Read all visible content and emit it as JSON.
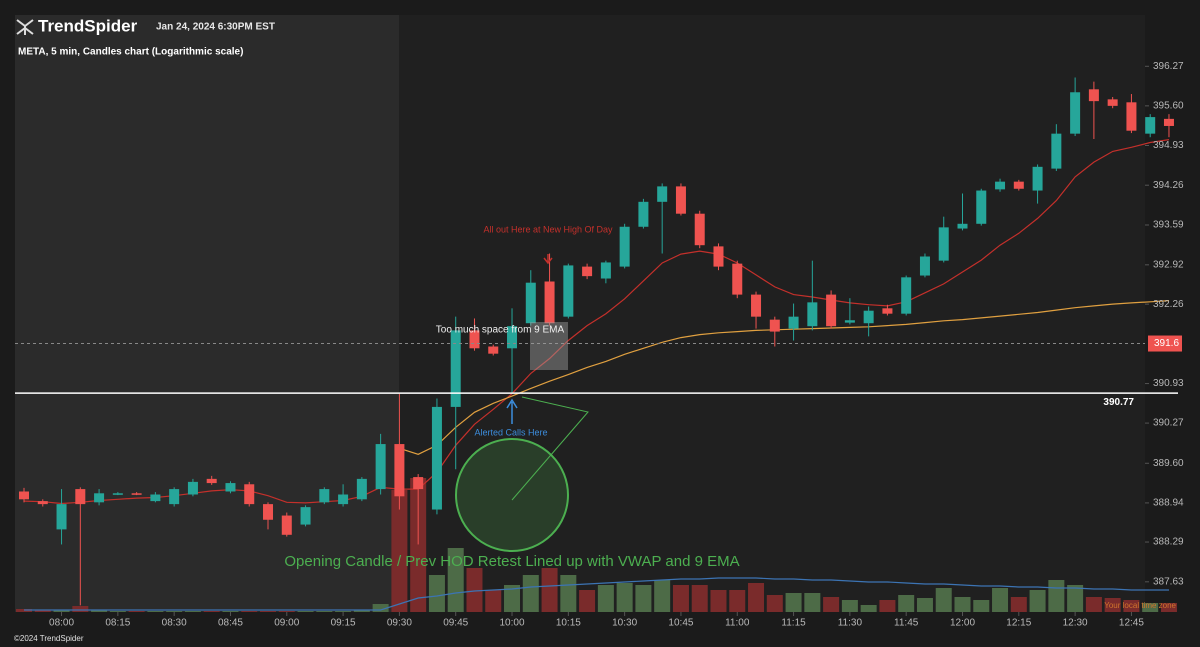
{
  "header": {
    "brand": "TrendSpider",
    "date": "Jan 24, 2024 6:30PM EST"
  },
  "footer": "©2024 TrendSpider",
  "chart_data": {
    "type": "candlestick",
    "title": "META, 5 min, Candles chart (Logarithmic scale)",
    "log_scale": true,
    "timezone_note": "Your local time zone",
    "up_color": "#26a69a",
    "down_color": "#ef5350",
    "categories": [
      null,
      null,
      "08:00",
      null,
      null,
      "08:15",
      null,
      null,
      "08:30",
      null,
      null,
      "08:45",
      null,
      null,
      "09:00",
      null,
      null,
      "09:15",
      null,
      null,
      "09:30",
      null,
      null,
      "09:45",
      null,
      null,
      "10:00",
      null,
      null,
      "10:15",
      null,
      null,
      "10:30",
      null,
      null,
      "10:45",
      null,
      null,
      "11:00",
      null,
      null,
      "11:15",
      null,
      null,
      "11:30",
      null,
      null,
      "11:45",
      null,
      null,
      "12:00",
      null,
      null,
      "12:15",
      null,
      null,
      "12:30",
      null,
      null,
      "12:45",
      null,
      null
    ],
    "ohlc": {
      "open": [
        389.13,
        388.97,
        388.5,
        389.17,
        388.95,
        389.08,
        389.1,
        388.97,
        388.92,
        389.08,
        389.34,
        389.13,
        389.25,
        388.92,
        388.73,
        388.58,
        388.95,
        388.92,
        389.0,
        389.17,
        389.92,
        389.37,
        388.83,
        390.54,
        391.82,
        391.55,
        391.52,
        391.94,
        392.64,
        392.05,
        392.89,
        392.69,
        392.89,
        393.56,
        393.98,
        394.24,
        393.78,
        393.23,
        392.94,
        392.42,
        392.0,
        391.85,
        391.89,
        392.42,
        391.95,
        391.94,
        392.19,
        392.1,
        392.74,
        392.99,
        393.53,
        393.61,
        394.19,
        394.32,
        394.17,
        394.54,
        395.13,
        395.88,
        395.71,
        395.66,
        395.13,
        395.38
      ],
      "high": [
        389.19,
        389.0,
        389.17,
        389.2,
        389.17,
        389.12,
        389.12,
        389.12,
        389.2,
        389.34,
        389.39,
        389.3,
        389.29,
        388.95,
        388.78,
        388.9,
        389.2,
        389.25,
        389.37,
        390.09,
        390.76,
        389.42,
        390.68,
        392.05,
        392.02,
        391.58,
        392.19,
        392.83,
        393.11,
        392.94,
        392.94,
        392.99,
        393.61,
        394.03,
        394.29,
        394.29,
        393.83,
        393.28,
        392.99,
        392.47,
        392.05,
        392.27,
        392.99,
        392.49,
        392.36,
        392.22,
        392.25,
        392.74,
        393.11,
        393.73,
        394.12,
        394.2,
        394.37,
        394.35,
        394.61,
        395.29,
        396.08,
        396.01,
        395.75,
        395.8,
        395.46,
        395.46
      ],
      "low": [
        388.95,
        388.88,
        388.25,
        387.24,
        388.9,
        389.07,
        389.07,
        388.95,
        388.88,
        389.05,
        389.24,
        389.1,
        388.88,
        388.5,
        388.38,
        388.55,
        388.92,
        388.88,
        388.97,
        389.08,
        388.83,
        388.25,
        388.75,
        389.5,
        391.48,
        391.4,
        390.76,
        391.9,
        391.9,
        392.02,
        392.68,
        392.61,
        392.86,
        393.53,
        393.11,
        393.75,
        393.2,
        392.83,
        392.36,
        391.85,
        391.55,
        391.65,
        391.82,
        391.85,
        391.92,
        391.72,
        392.07,
        392.07,
        392.71,
        392.96,
        393.5,
        393.58,
        394.15,
        394.17,
        393.95,
        394.5,
        395.09,
        395.04,
        395.56,
        395.14,
        395.07,
        395.07
      ],
      "close": [
        389.0,
        388.92,
        388.92,
        388.92,
        389.1,
        389.1,
        389.08,
        389.08,
        389.17,
        389.29,
        389.27,
        389.27,
        388.92,
        388.66,
        388.41,
        388.87,
        389.17,
        389.08,
        389.34,
        389.92,
        389.05,
        389.17,
        390.54,
        391.82,
        391.52,
        391.43,
        391.89,
        392.62,
        391.94,
        392.91,
        392.73,
        392.96,
        393.56,
        393.98,
        394.24,
        393.78,
        393.25,
        392.89,
        392.42,
        392.05,
        391.8,
        392.05,
        392.29,
        391.89,
        391.99,
        392.15,
        392.1,
        392.71,
        393.06,
        393.55,
        393.61,
        394.17,
        394.32,
        394.2,
        394.57,
        395.13,
        395.83,
        395.68,
        395.6,
        395.18,
        395.41,
        395.26
      ]
    },
    "lines": [
      {
        "color": "#c4302b",
        "values": [
          388.97,
          388.96,
          388.93,
          388.95,
          388.98,
          389.0,
          389.02,
          389.03,
          389.06,
          389.1,
          389.14,
          389.16,
          389.14,
          389.06,
          388.95,
          388.94,
          388.96,
          388.98,
          389.05,
          389.2,
          389.17,
          389.17,
          389.45,
          389.9,
          390.25,
          390.5,
          390.76,
          391.1,
          391.35,
          391.65,
          391.9,
          392.1,
          392.35,
          392.65,
          392.95,
          393.1,
          393.15,
          393.1,
          392.95,
          392.75,
          392.55,
          392.42,
          392.38,
          392.33,
          392.28,
          392.25,
          392.23,
          392.3,
          392.45,
          392.6,
          392.8,
          393.0,
          393.25,
          393.45,
          393.7,
          394.0,
          394.4,
          394.65,
          394.83,
          394.9,
          394.98,
          395.03
        ]
      },
      {
        "color": "#e0a040",
        "values": [
          null,
          null,
          null,
          null,
          null,
          null,
          null,
          null,
          null,
          null,
          null,
          null,
          null,
          null,
          null,
          null,
          null,
          null,
          null,
          null,
          389.85,
          389.75,
          389.9,
          390.2,
          390.45,
          390.6,
          390.72,
          390.85,
          390.97,
          391.08,
          391.2,
          391.3,
          391.42,
          391.52,
          391.62,
          391.7,
          391.75,
          391.78,
          391.8,
          391.82,
          391.83,
          391.84,
          391.85,
          391.86,
          391.87,
          391.88,
          391.9,
          391.92,
          391.95,
          391.98,
          392.0,
          392.03,
          392.06,
          392.09,
          392.12,
          392.16,
          392.2,
          392.23,
          392.26,
          392.28,
          392.3,
          392.32
        ]
      }
    ],
    "volume": {
      "vlim": [
        0,
        140
      ],
      "up_color": "#4d6b47",
      "down_color": "#7a2b2b",
      "ma_color": "#3c74b4",
      "values": [
        3,
        2,
        2,
        6,
        2,
        1,
        1,
        1,
        1,
        1,
        1,
        1,
        1,
        1,
        1,
        1,
        1,
        1,
        2,
        8,
        122,
        134,
        37,
        64,
        44,
        22,
        27,
        37,
        44,
        37,
        22,
        27,
        29,
        27,
        32,
        27,
        27,
        22,
        22,
        29,
        17,
        19,
        19,
        15,
        12,
        7,
        12,
        17,
        14,
        24,
        15,
        12,
        24,
        15,
        22,
        32,
        27,
        15,
        14,
        12,
        9,
        9
      ],
      "ma": [
        2,
        2,
        2,
        2,
        2,
        2,
        2,
        2,
        2,
        2,
        2,
        2,
        2,
        2,
        2,
        2,
        2,
        2,
        2,
        2,
        8,
        14,
        16,
        19,
        21,
        22,
        23,
        25,
        26,
        27,
        28,
        29,
        30,
        31,
        32,
        33,
        33,
        34,
        34,
        34,
        33,
        33,
        32,
        32,
        31,
        30,
        30,
        29,
        28,
        28,
        27,
        26,
        26,
        25,
        25,
        24,
        24,
        23,
        23,
        22,
        22,
        22
      ]
    },
    "ylim": [
      387.13,
      397.14
    ],
    "yticks": [
      396.27,
      {
        "value": 395.6,
        "label": "395.60"
      },
      394.93,
      394.26,
      393.59,
      392.92,
      392.26,
      390.93,
      390.27,
      {
        "value": 389.6,
        "label": "389.60"
      },
      388.94,
      388.29,
      387.63
    ],
    "level_line": 390.77,
    "last_price": 391.6,
    "annotations": [
      "All out Here at New High Of Day",
      "Too much space from 9 EMA",
      "Alerted Calls Here",
      "Opening Candle / Prev HOD Retest Lined up with VWAP and 9 EMA"
    ]
  }
}
